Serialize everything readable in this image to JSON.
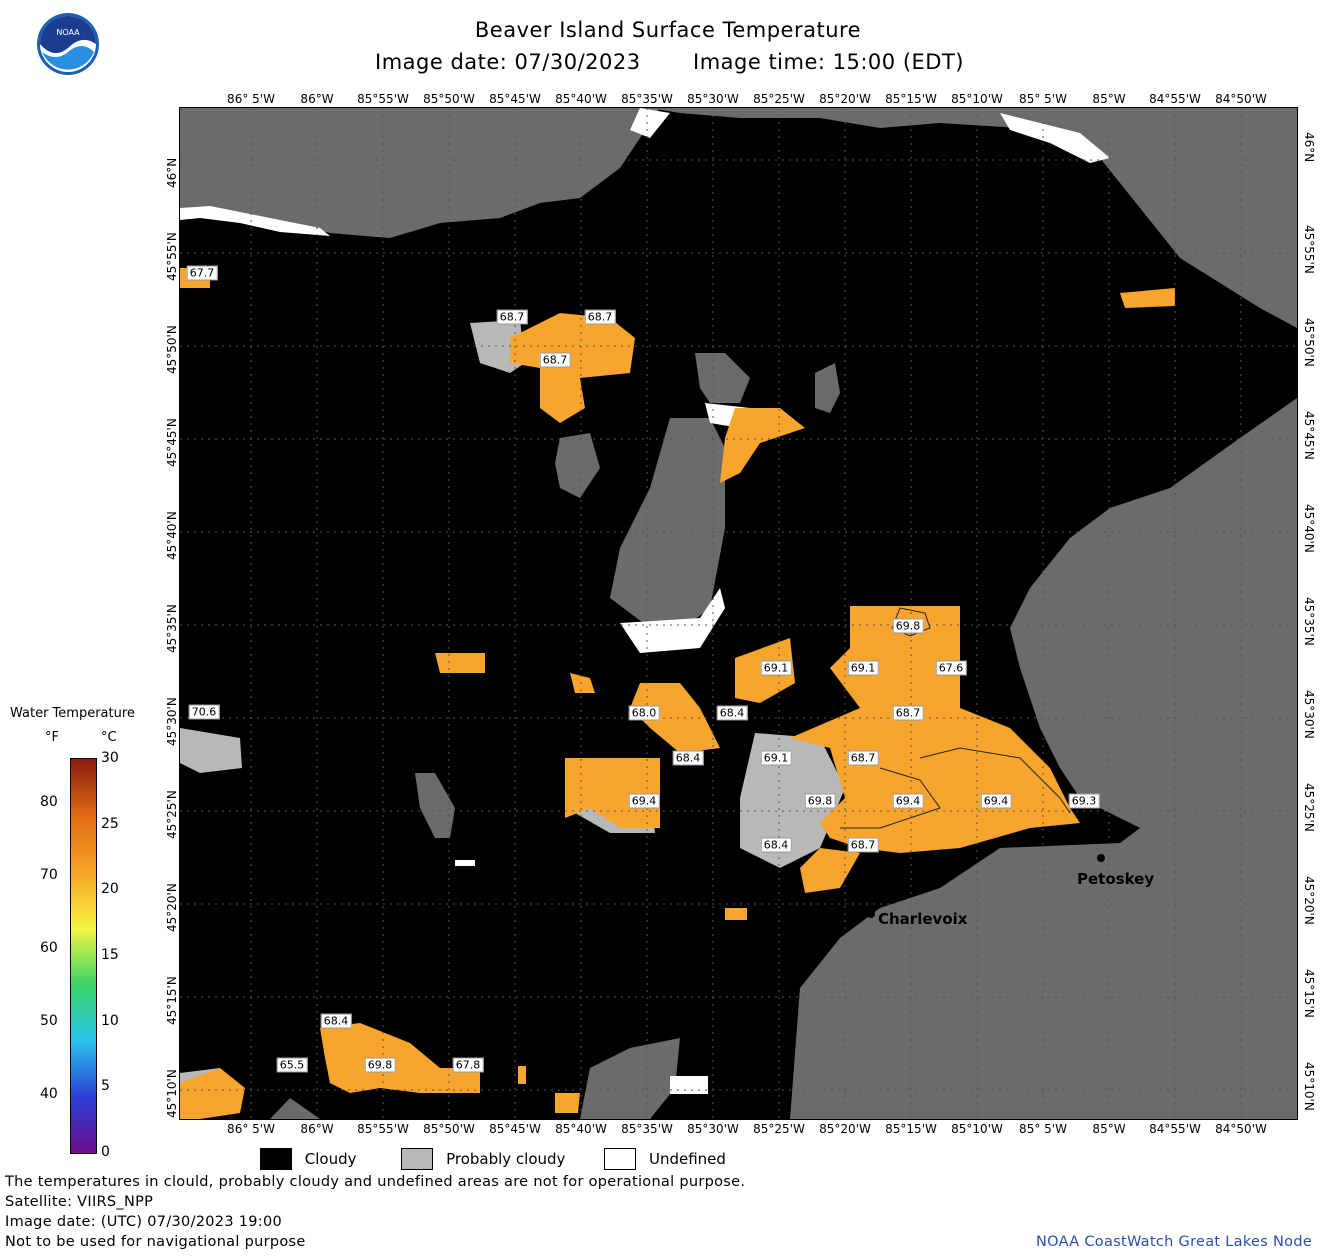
{
  "header": {
    "title": "Beaver Island Surface Temperature",
    "image_date": "Image date: 07/30/2023",
    "image_time": "Image time: 15:00 (EDT)"
  },
  "logo": {
    "text": "NOAA"
  },
  "axes": {
    "lon_labels": [
      "86° 5'W",
      "86°W",
      "85°55'W",
      "85°50'W",
      "85°45'W",
      "85°40'W",
      "85°35'W",
      "85°30'W",
      "85°25'W",
      "85°20'W",
      "85°15'W",
      "85°10'W",
      "85° 5'W",
      "85°W",
      "84°55'W",
      "84°50'W"
    ],
    "lat_labels": [
      "46°N",
      "45°55'N",
      "45°50'N",
      "45°45'N",
      "45°40'N",
      "45°35'N",
      "45°30'N",
      "45°25'N",
      "45°20'N",
      "45°15'N",
      "45°10'N"
    ]
  },
  "temperature_labels": [
    {
      "value": "67.7"
    },
    {
      "value": "68.7"
    },
    {
      "value": "68.7"
    },
    {
      "value": "68.7"
    },
    {
      "value": "69.8"
    },
    {
      "value": "69.1"
    },
    {
      "value": "69.1"
    },
    {
      "value": "67.6"
    },
    {
      "value": "70.6"
    },
    {
      "value": "68.0"
    },
    {
      "value": "68.4"
    },
    {
      "value": "68.7"
    },
    {
      "value": "68.4"
    },
    {
      "value": "69.1"
    },
    {
      "value": "68.7"
    },
    {
      "value": "69.4"
    },
    {
      "value": "69.8"
    },
    {
      "value": "69.4"
    },
    {
      "value": "69.4"
    },
    {
      "value": "69.3"
    },
    {
      "value": "68.4"
    },
    {
      "value": "68.7"
    },
    {
      "value": "68.4"
    },
    {
      "value": "65.5"
    },
    {
      "value": "69.8"
    },
    {
      "value": "67.8"
    }
  ],
  "cities": [
    "Petoskey",
    "Charlevoix"
  ],
  "legend": {
    "title": "Water Temperature",
    "unit_f": "°F",
    "unit_c": "°C",
    "f_ticks": [
      "80",
      "70",
      "60",
      "50",
      "40"
    ],
    "c_ticks": [
      "30",
      "25",
      "20",
      "15",
      "10",
      "5",
      "0"
    ],
    "colors": [
      "#6a0d8a",
      "#2b3fd8",
      "#29c4e8",
      "#3cd46a",
      "#f5f542",
      "#f7a428",
      "#e06a12",
      "#8a1b10"
    ]
  },
  "categories": [
    {
      "label": "Cloudy",
      "color": "#000000"
    },
    {
      "label": "Probably cloudy",
      "color": "#b8b8b8"
    },
    {
      "label": "Undefined",
      "color": "#ffffff"
    }
  ],
  "footer": {
    "note": "The temperatures in clould, probably cloudy and undefined areas are not for operational purpose.",
    "satellite": "Satellite: VIIRS_NPP",
    "utc_date": "Image date: (UTC) 07/30/2023  19:00",
    "nav_warning": "Not to be used for navigational purpose",
    "credit": "NOAA CoastWatch Great Lakes Node"
  },
  "colors": {
    "land": "#6b6b6b",
    "cloud": "#000000",
    "temp": "#f7a52c",
    "credit": "#2a4fb0"
  }
}
